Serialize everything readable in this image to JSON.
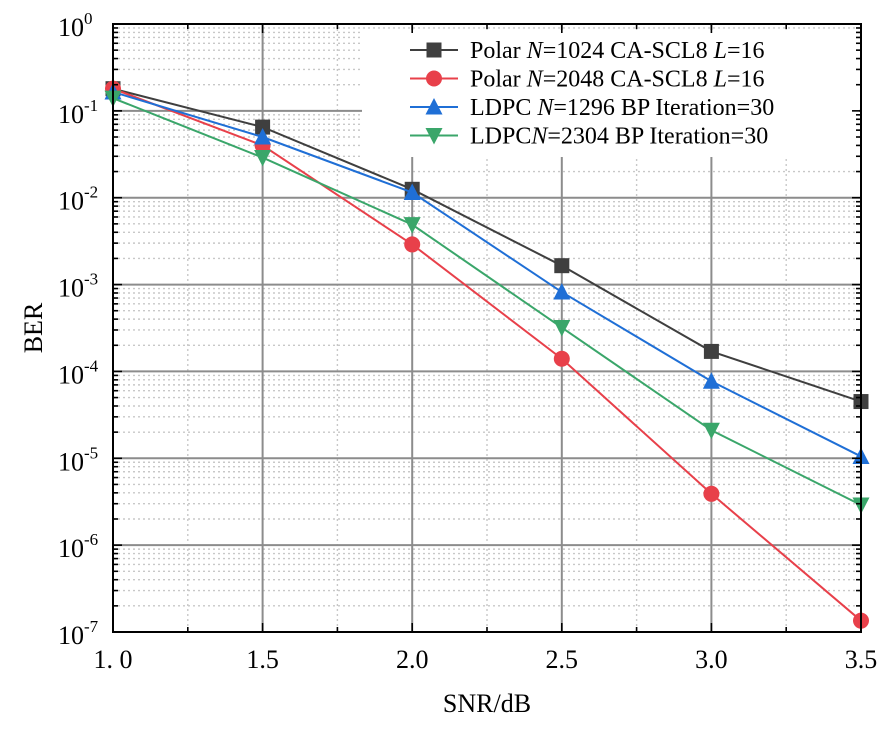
{
  "chart_data": {
    "type": "line",
    "xlabel": "SNR/dB",
    "ylabel": "BER",
    "xlim": [
      1.0,
      3.5
    ],
    "ylim": [
      1e-07,
      1
    ],
    "yscale": "log",
    "grid": true,
    "legend_position": "top-right",
    "x_ticks": [
      {
        "value": 1.0,
        "label": "1. 0"
      },
      {
        "value": 1.5,
        "label": "1.5"
      },
      {
        "value": 2.0,
        "label": "2.0"
      },
      {
        "value": 2.5,
        "label": "2.5"
      },
      {
        "value": 3.0,
        "label": "3.0"
      },
      {
        "value": 3.5,
        "label": "3.5"
      }
    ],
    "y_ticks": [
      {
        "value": 1,
        "base": "10",
        "exp": "0"
      },
      {
        "value": 0.1,
        "base": "10",
        "exp": "-1"
      },
      {
        "value": 0.01,
        "base": "10",
        "exp": "-2"
      },
      {
        "value": 0.001,
        "base": "10",
        "exp": "-3"
      },
      {
        "value": 0.0001,
        "base": "10",
        "exp": "-4"
      },
      {
        "value": 1e-05,
        "base": "10",
        "exp": "-5"
      },
      {
        "value": 1e-06,
        "base": "10",
        "exp": "-6"
      },
      {
        "value": 1e-07,
        "base": "10",
        "exp": "-7"
      }
    ],
    "x": [
      1.0,
      1.5,
      2.0,
      2.5,
      3.0,
      3.5
    ],
    "series": [
      {
        "name": "Polar N=1024 CA-SCL8 L=16",
        "legend_parts": [
          {
            "text": "Polar ",
            "italic": false
          },
          {
            "text": "N",
            "italic": true
          },
          {
            "text": "=1024 CA-SCL8 ",
            "italic": false
          },
          {
            "text": "L",
            "italic": true
          },
          {
            "text": "=16",
            "italic": false
          }
        ],
        "color": "#3f3f3f",
        "marker": "square",
        "values": [
          0.18,
          0.065,
          0.0125,
          0.00165,
          0.00017,
          4.5e-05
        ]
      },
      {
        "name": "Polar N=2048 CA-SCL8 L=16",
        "legend_parts": [
          {
            "text": "Polar ",
            "italic": false
          },
          {
            "text": "N",
            "italic": true
          },
          {
            "text": "=2048 CA-SCL8 ",
            "italic": false
          },
          {
            "text": "L",
            "italic": true
          },
          {
            "text": "=16",
            "italic": false
          }
        ],
        "color": "#e8404a",
        "marker": "circle",
        "values": [
          0.18,
          0.04,
          0.0029,
          0.00014,
          3.9e-06,
          1.35e-07
        ]
      },
      {
        "name": "LDPC N=1296 BP Iteration=30",
        "legend_parts": [
          {
            "text": "LDPC ",
            "italic": false
          },
          {
            "text": "N",
            "italic": true
          },
          {
            "text": "=1296 BP Iteration=30",
            "italic": false
          }
        ],
        "color": "#1f6fd6",
        "marker": "triangle-up",
        "values": [
          0.165,
          0.05,
          0.0115,
          0.00082,
          7.7e-05,
          1.05e-05
        ]
      },
      {
        "name": "LDPCN=2304 BP Iteration=30",
        "legend_parts": [
          {
            "text": "LDPC",
            "italic": false
          },
          {
            "text": "N",
            "italic": true
          },
          {
            "text": "=2304 BP Iteration=30",
            "italic": false
          }
        ],
        "color": "#3aa66a",
        "marker": "triangle-down",
        "values": [
          0.14,
          0.029,
          0.0049,
          0.00032,
          2.1e-05,
          2.9e-06
        ]
      }
    ]
  }
}
